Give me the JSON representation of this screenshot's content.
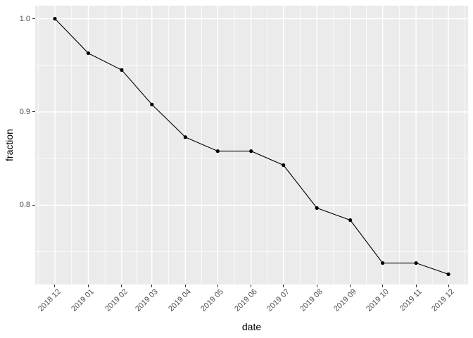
{
  "chart_data": {
    "type": "line",
    "title": "",
    "xlabel": "date",
    "ylabel": "fraction",
    "categories": [
      "2018 12",
      "2019 01",
      "2019 02",
      "2019 03",
      "2019 04",
      "2019 05",
      "2019 06",
      "2019 07",
      "2019 08",
      "2019 09",
      "2019 10",
      "2019 11",
      "2019 12"
    ],
    "day_offsets": [
      0,
      31,
      62,
      90,
      121,
      151,
      182,
      212,
      243,
      274,
      304,
      335,
      365
    ],
    "values": [
      1.0,
      0.963,
      0.945,
      0.908,
      0.873,
      0.858,
      0.858,
      0.843,
      0.797,
      0.784,
      0.738,
      0.738,
      0.726
    ],
    "y_ticks": [
      1.0,
      0.9,
      0.8
    ],
    "y_tick_labels": [
      "1.0",
      "0.9",
      "0.8"
    ],
    "y_minor_ticks": [
      0.95,
      0.85,
      0.75
    ],
    "ylim": [
      0.715,
      1.014
    ],
    "xlim_days": [
      -18.25,
      383.25
    ],
    "grid": "major-and-minor",
    "legend_position": "none",
    "colors": {
      "background": "#FFFFFF",
      "panel": "#EBEBEB",
      "grid_major": "#FFFFFF",
      "grid_minor": "#FFFFFF",
      "line": "#000000",
      "point": "#000000",
      "tick_text": "#4D4D4D",
      "tick_mark": "#333333",
      "axis_title": "#000000"
    }
  }
}
